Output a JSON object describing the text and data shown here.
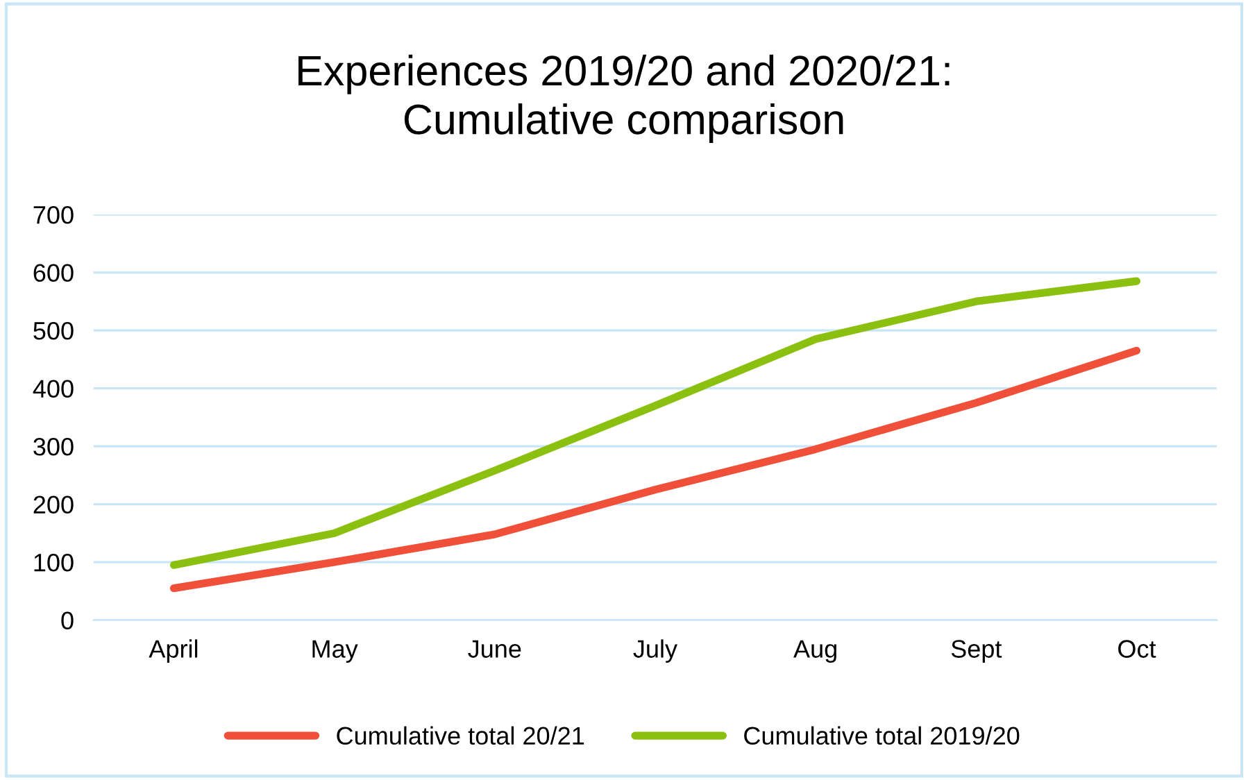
{
  "chart_data": {
    "type": "line",
    "title": "Experiences 2019/20 and 2020/21:\nCumulative comparison",
    "categories": [
      "April",
      "May",
      "June",
      "July",
      "Aug",
      "Sept",
      "Oct"
    ],
    "series": [
      {
        "name": "Cumulative total 20/21",
        "color": "#f0503a",
        "values": [
          55,
          100,
          148,
          225,
          295,
          375,
          465
        ]
      },
      {
        "name": "Cumulative total 2019/20",
        "color": "#8cc010",
        "values": [
          95,
          150,
          258,
          370,
          485,
          550,
          585
        ]
      }
    ],
    "ylim": [
      0,
      700
    ],
    "yticks": [
      0,
      100,
      200,
      300,
      400,
      500,
      600,
      700
    ],
    "grid": "y",
    "legend": "bottom",
    "line_style": "solid",
    "marker": "none"
  }
}
